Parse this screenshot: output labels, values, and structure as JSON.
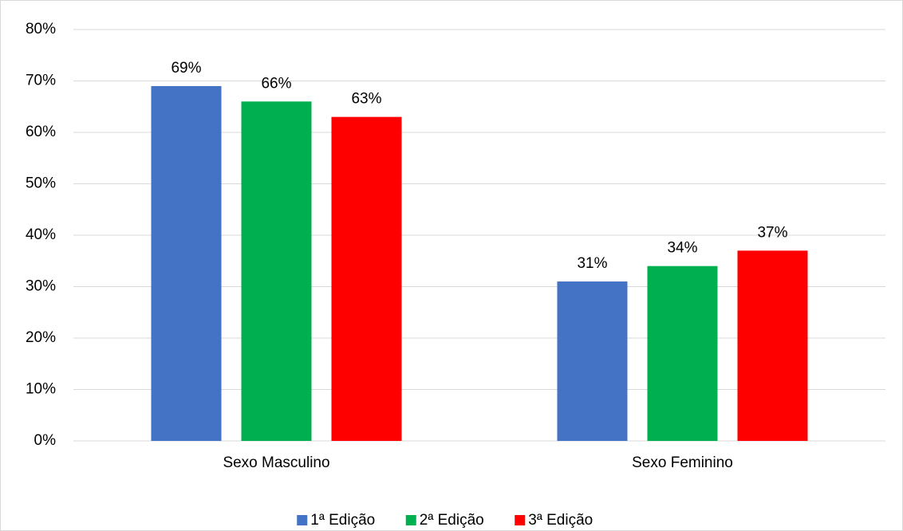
{
  "chart_data": {
    "type": "bar",
    "categories": [
      "Sexo Masculino",
      "Sexo Feminino"
    ],
    "series": [
      {
        "name": "1ª Edição",
        "color": "#4472c4",
        "values": [
          69,
          31
        ],
        "value_labels": [
          "69%",
          "31%"
        ]
      },
      {
        "name": "2ª Edição",
        "color": "#00b050",
        "values": [
          66,
          34
        ],
        "value_labels": [
          "66%",
          "34%"
        ]
      },
      {
        "name": "3ª Edição",
        "color": "#ff0000",
        "values": [
          63,
          37
        ],
        "value_labels": [
          "63%",
          "37%"
        ]
      }
    ],
    "ylim": [
      0,
      80
    ],
    "yticks": [
      {
        "value": 0,
        "label": "0%"
      },
      {
        "value": 10,
        "label": "10%"
      },
      {
        "value": 20,
        "label": "20%"
      },
      {
        "value": 30,
        "label": "30%"
      },
      {
        "value": 40,
        "label": "40%"
      },
      {
        "value": 50,
        "label": "50%"
      },
      {
        "value": 60,
        "label": "60%"
      },
      {
        "value": 70,
        "label": "70%"
      },
      {
        "value": 80,
        "label": "80%"
      }
    ],
    "grid": true,
    "legend": "bottom"
  }
}
